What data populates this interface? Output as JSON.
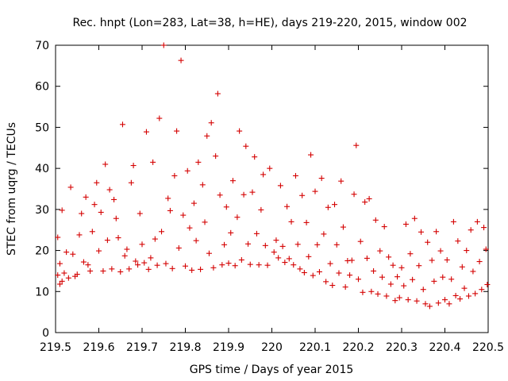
{
  "chart_data": {
    "type": "scatter",
    "title": "Rec. hnpt (Lon=283, Lat=38, h=HE), days 219-220, 2015, window 002",
    "xlabel": "GPS time / Days of year 2015",
    "ylabel": "STEC from uqrg / TECUs",
    "xlim": [
      219.5,
      220.5
    ],
    "ylim": [
      0,
      70
    ],
    "xticks": [
      "219.5",
      "219.6",
      "219.7",
      "219.8",
      "219.9",
      "220",
      "220.1",
      "220.2",
      "220.3",
      "220.4",
      "220.5"
    ],
    "yticks": [
      "0",
      "10",
      "20",
      "30",
      "40",
      "50",
      "60",
      "70"
    ],
    "grid": false,
    "marker": "plus",
    "color": "#d40000",
    "series": [
      {
        "points": [
          [
            219.505,
            14.0
          ],
          [
            219.505,
            23.2
          ],
          [
            219.51,
            11.8
          ],
          [
            219.51,
            16.8
          ],
          [
            219.515,
            29.8
          ],
          [
            219.515,
            12.5
          ],
          [
            219.52,
            14.5
          ],
          [
            219.525,
            19.6
          ],
          [
            219.53,
            13.3
          ],
          [
            219.535,
            35.4
          ],
          [
            219.54,
            19.1
          ],
          [
            219.545,
            13.7
          ],
          [
            219.55,
            14.2
          ],
          [
            219.555,
            23.8
          ],
          [
            219.56,
            29.0
          ],
          [
            219.565,
            17.2
          ],
          [
            219.57,
            33.0
          ],
          [
            219.575,
            16.5
          ],
          [
            219.58,
            15.0
          ],
          [
            219.585,
            24.6
          ],
          [
            219.59,
            31.2
          ],
          [
            219.595,
            36.5
          ],
          [
            219.6,
            19.9
          ],
          [
            219.605,
            29.3
          ],
          [
            219.61,
            15.0
          ],
          [
            219.615,
            41.0
          ],
          [
            219.62,
            22.5
          ],
          [
            219.625,
            34.8
          ],
          [
            219.63,
            15.5
          ],
          [
            219.635,
            32.4
          ],
          [
            219.64,
            27.8
          ],
          [
            219.645,
            23.1
          ],
          [
            219.65,
            14.8
          ],
          [
            219.655,
            50.7
          ],
          [
            219.66,
            18.7
          ],
          [
            219.665,
            20.3
          ],
          [
            219.67,
            15.5
          ],
          [
            219.675,
            36.5
          ],
          [
            219.68,
            40.7
          ],
          [
            219.685,
            17.4
          ],
          [
            219.69,
            16.5
          ],
          [
            219.695,
            29.0
          ],
          [
            219.7,
            21.5
          ],
          [
            219.705,
            17.0
          ],
          [
            219.71,
            48.9
          ],
          [
            219.715,
            15.4
          ],
          [
            219.72,
            18.2
          ],
          [
            219.725,
            41.5
          ],
          [
            219.73,
            22.8
          ],
          [
            219.735,
            16.4
          ],
          [
            219.74,
            52.2
          ],
          [
            219.745,
            24.6
          ],
          [
            219.75,
            70.0
          ],
          [
            219.755,
            16.8
          ],
          [
            219.76,
            32.7
          ],
          [
            219.765,
            29.7
          ],
          [
            219.77,
            15.6
          ],
          [
            219.775,
            38.2
          ],
          [
            219.78,
            49.1
          ],
          [
            219.785,
            20.6
          ],
          [
            219.79,
            66.3
          ],
          [
            219.795,
            28.6
          ],
          [
            219.8,
            16.2
          ],
          [
            219.805,
            39.4
          ],
          [
            219.81,
            25.5
          ],
          [
            219.815,
            15.2
          ],
          [
            219.82,
            31.5
          ],
          [
            219.825,
            22.4
          ],
          [
            219.83,
            41.5
          ],
          [
            219.835,
            15.4
          ],
          [
            219.84,
            36.0
          ],
          [
            219.845,
            26.9
          ],
          [
            219.85,
            47.9
          ],
          [
            219.855,
            19.3
          ],
          [
            219.86,
            51.1
          ],
          [
            219.865,
            15.8
          ],
          [
            219.87,
            43.0
          ],
          [
            219.875,
            58.2
          ],
          [
            219.88,
            33.5
          ],
          [
            219.885,
            16.5
          ],
          [
            219.89,
            21.4
          ],
          [
            219.895,
            30.6
          ],
          [
            219.9,
            16.9
          ],
          [
            219.905,
            24.3
          ],
          [
            219.91,
            37.0
          ],
          [
            219.915,
            16.3
          ],
          [
            219.92,
            28.1
          ],
          [
            219.925,
            49.1
          ],
          [
            219.93,
            17.7
          ],
          [
            219.935,
            33.6
          ],
          [
            219.94,
            45.4
          ],
          [
            219.945,
            21.6
          ],
          [
            219.95,
            16.6
          ],
          [
            219.955,
            34.2
          ],
          [
            219.96,
            42.8
          ],
          [
            219.965,
            24.1
          ],
          [
            219.97,
            16.5
          ],
          [
            219.975,
            29.9
          ],
          [
            219.98,
            38.5
          ],
          [
            219.985,
            21.2
          ],
          [
            219.99,
            16.4
          ],
          [
            219.995,
            40.0
          ],
          [
            220.005,
            19.6
          ],
          [
            220.01,
            22.5
          ],
          [
            220.015,
            18.2
          ],
          [
            220.02,
            35.8
          ],
          [
            220.025,
            21.0
          ],
          [
            220.03,
            17.1
          ],
          [
            220.035,
            30.7
          ],
          [
            220.04,
            18.0
          ],
          [
            220.045,
            27.0
          ],
          [
            220.05,
            16.5
          ],
          [
            220.055,
            38.2
          ],
          [
            220.06,
            21.5
          ],
          [
            220.065,
            15.5
          ],
          [
            220.07,
            33.4
          ],
          [
            220.075,
            14.6
          ],
          [
            220.08,
            26.8
          ],
          [
            220.085,
            18.5
          ],
          [
            220.09,
            43.3
          ],
          [
            220.095,
            13.9
          ],
          [
            220.1,
            34.4
          ],
          [
            220.105,
            21.4
          ],
          [
            220.11,
            14.8
          ],
          [
            220.115,
            37.6
          ],
          [
            220.12,
            24.0
          ],
          [
            220.125,
            12.4
          ],
          [
            220.13,
            30.5
          ],
          [
            220.135,
            16.8
          ],
          [
            220.14,
            11.5
          ],
          [
            220.145,
            31.2
          ],
          [
            220.15,
            21.4
          ],
          [
            220.155,
            14.5
          ],
          [
            220.16,
            36.9
          ],
          [
            220.165,
            25.7
          ],
          [
            220.17,
            11.1
          ],
          [
            220.175,
            17.5
          ],
          [
            220.18,
            14.0
          ],
          [
            220.185,
            17.6
          ],
          [
            220.19,
            33.7
          ],
          [
            220.195,
            45.6
          ],
          [
            220.2,
            13.0
          ],
          [
            220.205,
            22.2
          ],
          [
            220.21,
            9.8
          ],
          [
            220.215,
            31.8
          ],
          [
            220.22,
            18.1
          ],
          [
            220.225,
            32.6
          ],
          [
            220.23,
            10.0
          ],
          [
            220.235,
            15.0
          ],
          [
            220.24,
            27.4
          ],
          [
            220.245,
            9.4
          ],
          [
            220.25,
            19.9
          ],
          [
            220.255,
            13.5
          ],
          [
            220.26,
            25.8
          ],
          [
            220.265,
            8.9
          ],
          [
            220.27,
            18.4
          ],
          [
            220.275,
            11.8
          ],
          [
            220.28,
            16.4
          ],
          [
            220.285,
            7.8
          ],
          [
            220.29,
            13.6
          ],
          [
            220.295,
            8.5
          ],
          [
            220.3,
            15.8
          ],
          [
            220.305,
            11.4
          ],
          [
            220.31,
            26.4
          ],
          [
            220.315,
            8.0
          ],
          [
            220.32,
            19.2
          ],
          [
            220.325,
            12.9
          ],
          [
            220.33,
            27.8
          ],
          [
            220.335,
            7.7
          ],
          [
            220.34,
            16.3
          ],
          [
            220.345,
            24.5
          ],
          [
            220.35,
            10.5
          ],
          [
            220.355,
            7.0
          ],
          [
            220.36,
            22.0
          ],
          [
            220.365,
            6.4
          ],
          [
            220.37,
            17.6
          ],
          [
            220.375,
            12.5
          ],
          [
            220.38,
            24.6
          ],
          [
            220.385,
            7.2
          ],
          [
            220.39,
            19.9
          ],
          [
            220.395,
            13.5
          ],
          [
            220.4,
            8.0
          ],
          [
            220.405,
            17.7
          ],
          [
            220.41,
            7.0
          ],
          [
            220.415,
            13.0
          ],
          [
            220.42,
            27.0
          ],
          [
            220.425,
            9.0
          ],
          [
            220.43,
            22.3
          ],
          [
            220.435,
            8.2
          ],
          [
            220.44,
            16.0
          ],
          [
            220.445,
            10.8
          ],
          [
            220.45,
            20.0
          ],
          [
            220.455,
            8.9
          ],
          [
            220.46,
            25.0
          ],
          [
            220.465,
            14.9
          ],
          [
            220.47,
            9.5
          ],
          [
            220.475,
            27.0
          ],
          [
            220.48,
            17.3
          ],
          [
            220.485,
            10.5
          ],
          [
            220.49,
            25.6
          ],
          [
            220.495,
            20.3
          ],
          [
            220.498,
            11.7
          ]
        ]
      }
    ]
  }
}
